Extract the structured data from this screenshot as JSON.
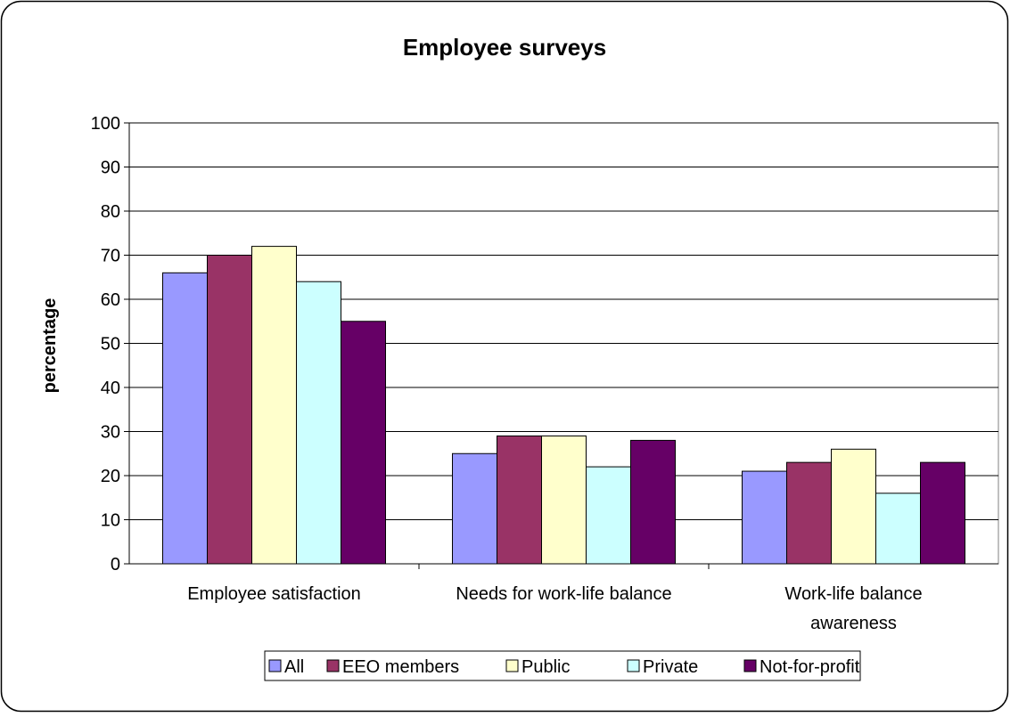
{
  "chart_data": {
    "type": "bar",
    "title": "Employee surveys",
    "xlabel": "",
    "ylabel": "percentage",
    "ylim": [
      0,
      100
    ],
    "yticks": [
      0,
      10,
      20,
      30,
      40,
      50,
      60,
      70,
      80,
      90,
      100
    ],
    "grid": true,
    "legend_position": "bottom",
    "categories": [
      [
        "Employee satisfaction"
      ],
      [
        "Needs for work-life balance"
      ],
      [
        "Work-life balance",
        "awareness"
      ]
    ],
    "series": [
      {
        "name": "All",
        "color": "#9999ff",
        "values": [
          66,
          25,
          21
        ]
      },
      {
        "name": "EEO members",
        "color": "#993366",
        "values": [
          70,
          29,
          23
        ]
      },
      {
        "name": "Public",
        "color": "#ffffcc",
        "values": [
          72,
          29,
          26
        ]
      },
      {
        "name": "Private",
        "color": "#ccffff",
        "values": [
          64,
          22,
          16
        ]
      },
      {
        "name": "Not-for-profit",
        "color": "#660066",
        "values": [
          55,
          28,
          23
        ]
      }
    ]
  }
}
